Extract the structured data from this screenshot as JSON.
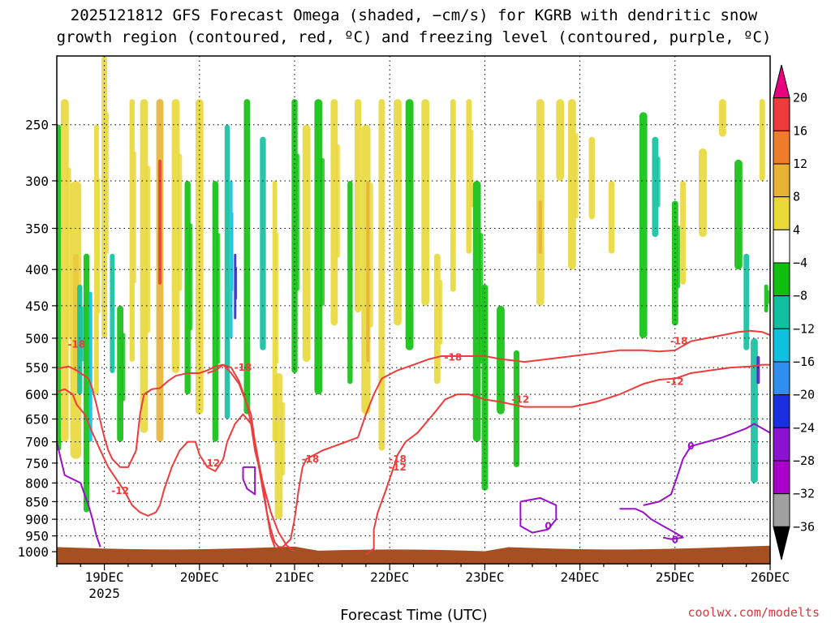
{
  "chart_data": {
    "type": "heatmap",
    "title_line1": "2025121812 GFS Forecast Omega (shaded, −cm/s) for KGRB with dendritic snow",
    "title_line2": "growth region (contoured, red, ºC) and freezing level (contoured, purple, ºC)",
    "xlabel": "Forecast Time (UTC)",
    "credit": "coolwx.com/modelts",
    "x_start": "2025121812",
    "x_ticks": [
      {
        "label": "19DEC",
        "sub": "2025",
        "hours": 12
      },
      {
        "label": "20DEC",
        "hours": 36
      },
      {
        "label": "21DEC",
        "hours": 60
      },
      {
        "label": "22DEC",
        "hours": 84
      },
      {
        "label": "23DEC",
        "hours": 108
      },
      {
        "label": "24DEC",
        "hours": 132
      },
      {
        "label": "25DEC",
        "hours": 156
      },
      {
        "label": "26DEC",
        "hours": 180
      }
    ],
    "x_range_hours": [
      0,
      180
    ],
    "y_scale": "log-pressure",
    "y_range_hPa": [
      200,
      1040
    ],
    "y_ticks": [
      250,
      300,
      350,
      400,
      450,
      500,
      550,
      600,
      650,
      700,
      750,
      800,
      850,
      900,
      950,
      1000
    ],
    "grid": true,
    "colorbar": {
      "labels": [
        "20",
        "16",
        "12",
        "8",
        "4",
        "−4",
        "−8",
        "−12",
        "−16",
        "−20",
        "−24",
        "−28",
        "−32",
        "−36"
      ],
      "colors": [
        "#e8007e",
        "#ee3c3c",
        "#f07c2a",
        "#e8b235",
        "#e8d838",
        "#ffffff",
        "#10c010",
        "#10c0a0",
        "#10c0e0",
        "#2f8ff0",
        "#1a30e0",
        "#8a12d0",
        "#a800c8",
        "#a0a0a0",
        "#000000"
      ]
    },
    "dgz_contours": [
      {
        "label": "-18",
        "points": [
          [
            0,
            552
          ],
          [
            3,
            548
          ],
          [
            5,
            555
          ],
          [
            6,
            560
          ],
          [
            8,
            570
          ],
          [
            9,
            590
          ],
          [
            10,
            620
          ],
          [
            11,
            655
          ],
          [
            12,
            690
          ],
          [
            13,
            720
          ],
          [
            14,
            740
          ],
          [
            16,
            760
          ],
          [
            18,
            760
          ],
          [
            19,
            740
          ],
          [
            20,
            720
          ],
          [
            21,
            640
          ],
          [
            22,
            600
          ],
          [
            24,
            590
          ],
          [
            26,
            588
          ],
          [
            28,
            575
          ],
          [
            30,
            565
          ],
          [
            33,
            560
          ],
          [
            36,
            560
          ],
          [
            38,
            555
          ],
          [
            40,
            548
          ],
          [
            42,
            545
          ],
          [
            44,
            560
          ],
          [
            46,
            580
          ],
          [
            47,
            600
          ],
          [
            49,
            640
          ],
          [
            50,
            700
          ],
          [
            51,
            760
          ],
          [
            52,
            820
          ],
          [
            53,
            880
          ],
          [
            54,
            930
          ],
          [
            55,
            970
          ],
          [
            56,
            985
          ],
          [
            57,
            985
          ]
        ],
        "label_at": [
          [
            5,
            510
          ],
          [
            47,
            550
          ],
          [
            64,
            740
          ]
        ]
      },
      {
        "label": "-18 upper",
        "points": [
          [
            38,
            560
          ],
          [
            40,
            555
          ],
          [
            42,
            545
          ],
          [
            44,
            550
          ],
          [
            46,
            575
          ],
          [
            48,
            620
          ],
          [
            49,
            660
          ],
          [
            50,
            700
          ],
          [
            51,
            750
          ],
          [
            52,
            800
          ],
          [
            54,
            880
          ],
          [
            56,
            940
          ],
          [
            58,
            980
          ],
          [
            60,
            1000
          ]
        ],
        "label_at": []
      },
      {
        "label": "-18 mid",
        "points": [
          [
            57,
            985
          ],
          [
            59,
            960
          ],
          [
            60,
            900
          ],
          [
            61,
            820
          ],
          [
            62,
            760
          ],
          [
            63,
            740
          ],
          [
            65,
            730
          ],
          [
            67,
            720
          ],
          [
            70,
            710
          ],
          [
            73,
            700
          ],
          [
            76,
            690
          ],
          [
            78,
            640
          ],
          [
            80,
            600
          ],
          [
            82,
            570
          ],
          [
            86,
            555
          ],
          [
            90,
            545
          ],
          [
            94,
            535
          ],
          [
            97,
            530
          ],
          [
            100,
            530
          ],
          [
            104,
            530
          ],
          [
            108,
            530
          ],
          [
            112,
            535
          ],
          [
            118,
            540
          ],
          [
            124,
            535
          ],
          [
            130,
            530
          ],
          [
            136,
            525
          ],
          [
            142,
            520
          ],
          [
            148,
            520
          ],
          [
            152,
            522
          ],
          [
            156,
            520
          ],
          [
            160,
            505
          ],
          [
            164,
            500
          ],
          [
            168,
            495
          ],
          [
            172,
            490
          ],
          [
            175,
            488
          ],
          [
            178,
            490
          ],
          [
            180,
            495
          ]
        ],
        "label_at": [
          [
            100,
            532
          ],
          [
            157,
            505
          ],
          [
            86,
            740
          ]
        ]
      },
      {
        "label": "-12",
        "points": [
          [
            0,
            595
          ],
          [
            2,
            590
          ],
          [
            4,
            600
          ],
          [
            5,
            620
          ],
          [
            7,
            640
          ],
          [
            9,
            680
          ],
          [
            11,
            720
          ],
          [
            13,
            760
          ],
          [
            15,
            790
          ],
          [
            17,
            820
          ],
          [
            19,
            860
          ],
          [
            21,
            880
          ],
          [
            23,
            890
          ],
          [
            25,
            880
          ],
          [
            26,
            860
          ],
          [
            27,
            820
          ],
          [
            29,
            760
          ],
          [
            31,
            720
          ],
          [
            33,
            700
          ],
          [
            35,
            700
          ],
          [
            36,
            730
          ],
          [
            38,
            760
          ],
          [
            40,
            770
          ],
          [
            42,
            740
          ],
          [
            43,
            700
          ],
          [
            45,
            660
          ],
          [
            47,
            640
          ],
          [
            49,
            660
          ],
          [
            50,
            720
          ],
          [
            52,
            800
          ],
          [
            53,
            880
          ],
          [
            54,
            950
          ],
          [
            55,
            985
          ]
        ],
        "label_at": [
          [
            16,
            820
          ],
          [
            39,
            750
          ]
        ]
      },
      {
        "label": "-12 lower",
        "points": [
          [
            78,
            1010
          ],
          [
            80,
            990
          ],
          [
            80,
            930
          ],
          [
            81,
            880
          ],
          [
            83,
            820
          ],
          [
            85,
            760
          ],
          [
            86,
            730
          ],
          [
            88,
            700
          ],
          [
            91,
            680
          ],
          [
            95,
            640
          ],
          [
            98,
            610
          ],
          [
            101,
            600
          ],
          [
            104,
            600
          ],
          [
            108,
            610
          ],
          [
            112,
            615
          ],
          [
            118,
            625
          ],
          [
            124,
            625
          ],
          [
            130,
            625
          ],
          [
            136,
            615
          ],
          [
            142,
            600
          ],
          [
            148,
            580
          ],
          [
            152,
            572
          ],
          [
            156,
            570
          ],
          [
            160,
            560
          ],
          [
            165,
            555
          ],
          [
            170,
            550
          ],
          [
            175,
            548
          ],
          [
            178,
            545
          ],
          [
            180,
            545
          ]
        ],
        "label_at": [
          [
            86,
            760
          ],
          [
            117,
            610
          ],
          [
            156,
            576
          ]
        ]
      }
    ],
    "freezing_contours": [
      {
        "label": "0",
        "points": [
          [
            0,
            700
          ],
          [
            1,
            740
          ],
          [
            2,
            780
          ],
          [
            4,
            790
          ],
          [
            6,
            800
          ],
          [
            7,
            830
          ],
          [
            8,
            860
          ],
          [
            9,
            900
          ],
          [
            10,
            950
          ],
          [
            11,
            985
          ]
        ],
        "label_at": []
      },
      {
        "label": "0",
        "points": [
          [
            47,
            760
          ],
          [
            49,
            760
          ],
          [
            50,
            760
          ],
          [
            50,
            800
          ],
          [
            50,
            830
          ],
          [
            48,
            815
          ],
          [
            47,
            790
          ],
          [
            47,
            760
          ]
        ],
        "label_at": []
      },
      {
        "label": "0",
        "points": [
          [
            117,
            850
          ],
          [
            122,
            840
          ],
          [
            126,
            860
          ],
          [
            126,
            900
          ],
          [
            124,
            930
          ],
          [
            120,
            940
          ],
          [
            117,
            920
          ],
          [
            117,
            880
          ],
          [
            117,
            850
          ]
        ],
        "label_at": [
          [
            124,
            920
          ]
        ]
      },
      {
        "label": "0",
        "points": [
          [
            142,
            870
          ],
          [
            146,
            870
          ],
          [
            148,
            880
          ],
          [
            150,
            900
          ],
          [
            153,
            920
          ],
          [
            156,
            940
          ],
          [
            158,
            955
          ],
          [
            155,
            960
          ],
          [
            153,
            955
          ]
        ],
        "label_at": [
          [
            156,
            962
          ]
        ]
      },
      {
        "label": "0",
        "points": [
          [
            148,
            860
          ],
          [
            152,
            850
          ],
          [
            155,
            830
          ],
          [
            156,
            800
          ],
          [
            157,
            770
          ],
          [
            158,
            740
          ],
          [
            160,
            710
          ],
          [
            164,
            700
          ],
          [
            168,
            690
          ],
          [
            171,
            680
          ],
          [
            174,
            670
          ],
          [
            176,
            660
          ],
          [
            178,
            670
          ],
          [
            180,
            680
          ]
        ],
        "label_at": [
          [
            160,
            710
          ]
        ]
      }
    ],
    "terrain_hPa": 985
  }
}
